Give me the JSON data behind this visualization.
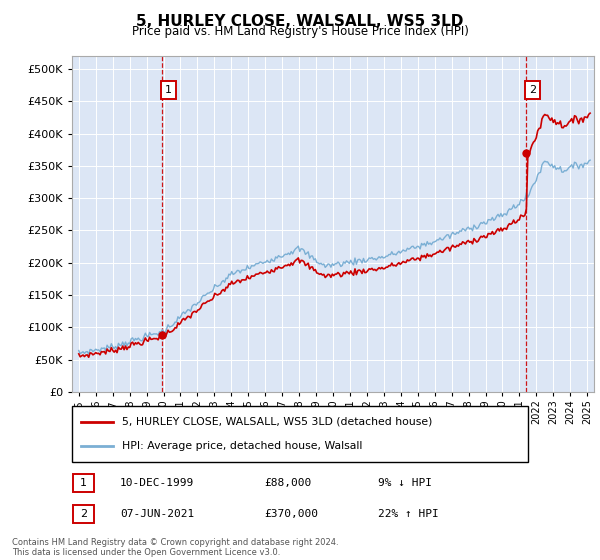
{
  "title": "5, HURLEY CLOSE, WALSALL, WS5 3LD",
  "subtitle": "Price paid vs. HM Land Registry's House Price Index (HPI)",
  "bg_color": "#dce6f5",
  "plot_bg_color": "#dce6f5",
  "hpi_color": "#7bafd4",
  "price_color": "#cc0000",
  "sale1_date": "10-DEC-1999",
  "sale1_price": 88000,
  "sale1_label": "9% ↓ HPI",
  "sale2_date": "07-JUN-2021",
  "sale2_price": 370000,
  "sale2_label": "22% ↑ HPI",
  "ylim": [
    0,
    520000
  ],
  "yticks": [
    0,
    50000,
    100000,
    150000,
    200000,
    250000,
    300000,
    350000,
    400000,
    450000,
    500000
  ],
  "legend_line1": "5, HURLEY CLOSE, WALSALL, WS5 3LD (detached house)",
  "legend_line2": "HPI: Average price, detached house, Walsall",
  "footnote": "Contains HM Land Registry data © Crown copyright and database right 2024.\nThis data is licensed under the Open Government Licence v3.0."
}
